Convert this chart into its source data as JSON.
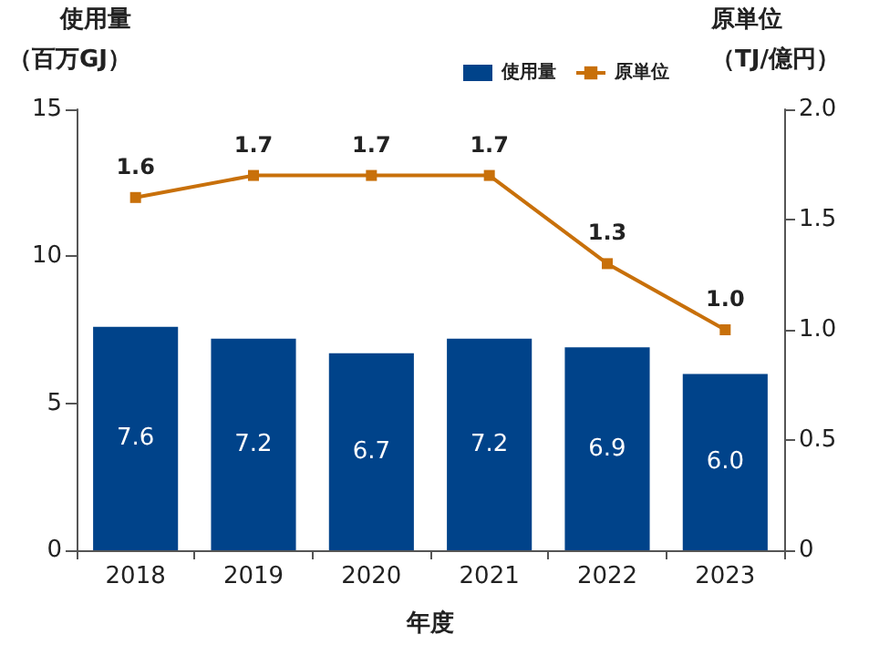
{
  "chart_data": {
    "type": "bar",
    "xlabel": "年度",
    "ylabel": "使用量（百万GJ）",
    "y2label": "原単位（TJ/億円）",
    "categories": [
      "2018",
      "2019",
      "2020",
      "2021",
      "2022",
      "2023"
    ],
    "series": [
      {
        "name": "使用量",
        "color": "#00438a",
        "values": [
          7.6,
          7.2,
          6.7,
          7.2,
          6.9,
          6.0
        ],
        "value_labels": [
          "7.6",
          "7.2",
          "6.7",
          "7.2",
          "6.9",
          "6.0"
        ]
      },
      {
        "name": "原単位",
        "type": "line",
        "axis": "y2",
        "color": "#c8700a",
        "marker": "square",
        "values": [
          1.6,
          1.7,
          1.7,
          1.7,
          1.3,
          1.0
        ],
        "value_labels": [
          "1.6",
          "1.7",
          "1.7",
          "1.7",
          "1.3",
          "1.0"
        ]
      }
    ],
    "ylim": [
      0,
      15
    ],
    "yticks": [
      0,
      5,
      10,
      15
    ],
    "y2lim": [
      0,
      2.0
    ],
    "y2ticks": [
      {
        "value": 0,
        "label": "0"
      },
      {
        "value": 0.5,
        "label": "0.5"
      },
      {
        "value": 1,
        "label": "1.0"
      },
      {
        "value": 1.5,
        "label": "1.5"
      },
      {
        "value": 2,
        "label": "2.0"
      }
    ],
    "legend": "top right",
    "grid": false
  }
}
